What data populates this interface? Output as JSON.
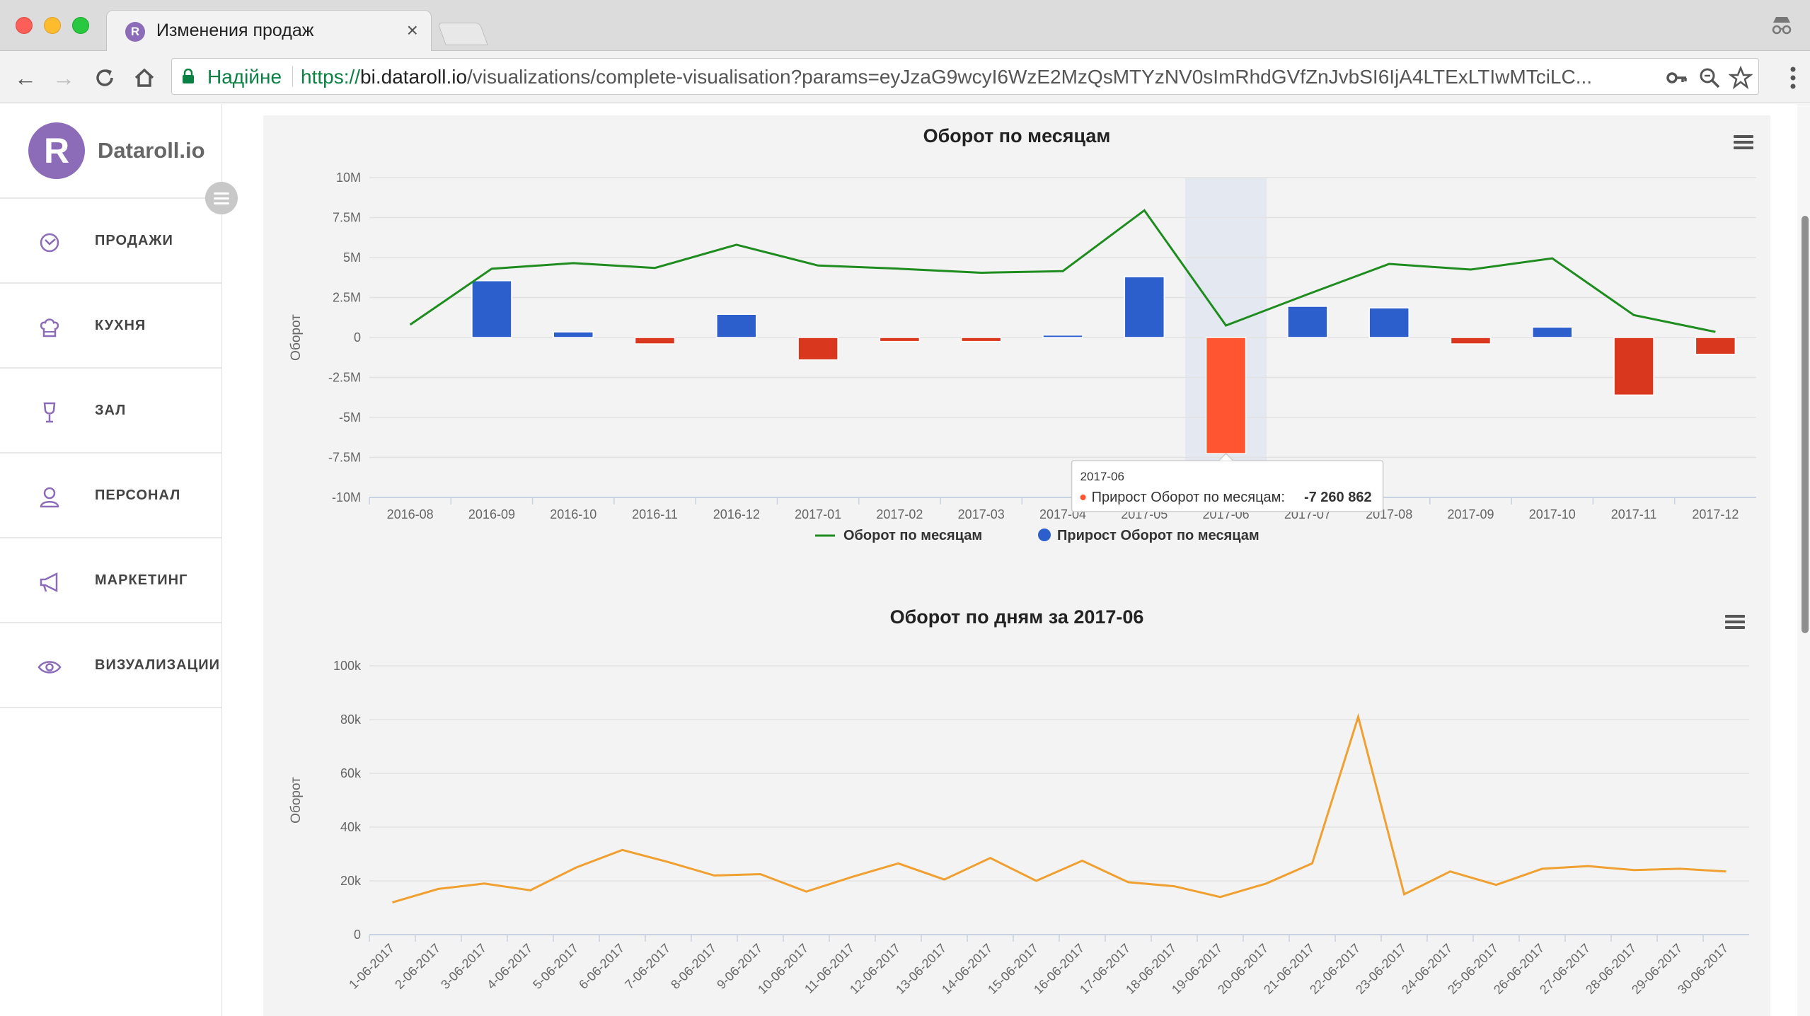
{
  "browser": {
    "tab_title": "Изменения продаж",
    "favicon_letter": "R",
    "security_label": "Надійне",
    "url_scheme": "https://",
    "url_host": "bi.dataroll.io",
    "url_path": "/visualizations/complete-visualisation?params=eyJzaG9wcyI6WzE2MzQsMTYzNV0sImRhdGVfZnJvbSI6IjA4LTExLTIwMTciLC..."
  },
  "sidebar": {
    "logo_letter": "R",
    "logo_text": "Dataroll.io",
    "items": [
      {
        "label": "ПРОДАЖИ",
        "icon": "clock-icon"
      },
      {
        "label": "КУХНЯ",
        "icon": "chef-hat-icon"
      },
      {
        "label": "ЗАЛ",
        "icon": "wine-glass-icon"
      },
      {
        "label": "ПЕРСОНАЛ",
        "icon": "person-icon"
      },
      {
        "label": "МАРКЕТИНГ",
        "icon": "megaphone-icon"
      },
      {
        "label": "ВИЗУАЛИЗАЦИИ",
        "icon": "eye-icon"
      }
    ]
  },
  "colors": {
    "accent": "#8c6bb8",
    "line_green": "#1e8c1e",
    "bar_blue": "#2d5fcc",
    "bar_red": "#d9381e",
    "line_orange": "#f0a030"
  },
  "chart_data": [
    {
      "type": "bar+line",
      "title": "Оборот по месяцам",
      "ylabel": "Оборот",
      "ylim": [
        -10000000,
        10000000
      ],
      "yticks": [
        "10M",
        "7.5M",
        "5M",
        "2.5M",
        "0",
        "-2.5M",
        "-5M",
        "-7.5M",
        "-10M"
      ],
      "categories": [
        "2016-08",
        "2016-09",
        "2016-10",
        "2016-11",
        "2016-12",
        "2017-01",
        "2017-02",
        "2017-03",
        "2017-04",
        "2017-05",
        "2017-06",
        "2017-07",
        "2017-08",
        "2017-09",
        "2017-10",
        "2017-11",
        "2017-12"
      ],
      "series": [
        {
          "name": "Оборот по месяцам",
          "type": "line",
          "values": [
            800000,
            4300000,
            4650000,
            4350000,
            5800000,
            4500000,
            4300000,
            4050000,
            4150000,
            7950000,
            750000,
            2700000,
            4600000,
            4250000,
            4950000,
            1400000,
            350000
          ]
        },
        {
          "name": "Прирост Оборот по месяцам",
          "type": "column",
          "values": [
            null,
            3550000,
            350000,
            -400000,
            1450000,
            -1400000,
            -250000,
            -250000,
            150000,
            3800000,
            -7260862,
            1950000,
            1850000,
            -400000,
            650000,
            -3600000,
            -1050000
          ]
        }
      ],
      "highlight_category": "2017-06",
      "tooltip": {
        "header": "2017-06",
        "series": "Прирост Оборот по месяцам:",
        "value": "-7 260 862"
      },
      "legend_position": "bottom-center"
    },
    {
      "type": "line",
      "title": "Оборот по дням за 2017-06",
      "ylabel": "Оборот",
      "ylim": [
        0,
        100000
      ],
      "yticks": [
        "100k",
        "80k",
        "60k",
        "40k",
        "20k",
        "0"
      ],
      "x": [
        "1-06-2017",
        "2-06-2017",
        "3-06-2017",
        "4-06-2017",
        "5-06-2017",
        "6-06-2017",
        "7-06-2017",
        "8-06-2017",
        "9-06-2017",
        "10-06-2017",
        "11-06-2017",
        "12-06-2017",
        "13-06-2017",
        "14-06-2017",
        "15-06-2017",
        "16-06-2017",
        "17-06-2017",
        "18-06-2017",
        "19-06-2017",
        "20-06-2017",
        "21-06-2017",
        "22-06-2017",
        "23-06-2017",
        "24-06-2017",
        "25-06-2017",
        "26-06-2017",
        "27-06-2017",
        "28-06-2017",
        "29-06-2017",
        "30-06-2017"
      ],
      "series": [
        {
          "values": [
            12000,
            17000,
            19000,
            16500,
            25000,
            31500,
            27000,
            22000,
            22500,
            16000,
            21500,
            26500,
            20500,
            28500,
            20000,
            27500,
            19500,
            18000,
            14000,
            19000,
            26500,
            81000,
            15000,
            23500,
            18500,
            24500,
            25500,
            24000,
            24500,
            23500
          ]
        }
      ]
    }
  ]
}
